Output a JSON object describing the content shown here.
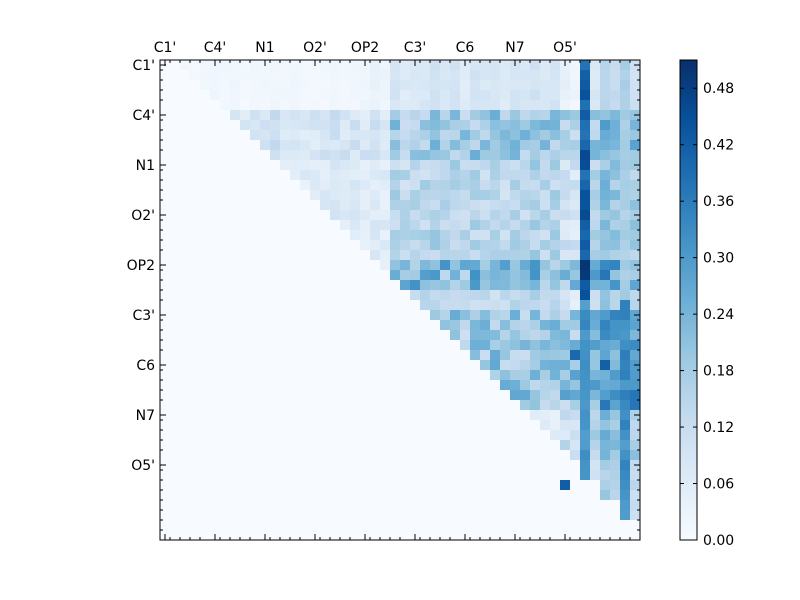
{
  "chart_data": {
    "type": "heatmap",
    "title": "",
    "xlabel": "",
    "ylabel": "",
    "n": 48,
    "major_tick_labels": [
      "C1'",
      "C4'",
      "N1",
      "O2'",
      "OP2",
      "C3'",
      "C6",
      "N7",
      "O5'"
    ],
    "major_tick_indices": [
      0,
      5,
      10,
      15,
      20,
      25,
      30,
      35,
      40
    ],
    "x_tick_position": "top",
    "colormap": "Blues",
    "colorbar": {
      "min": 0.0,
      "max": 0.51,
      "tick_values": [
        0.0,
        0.06,
        0.12,
        0.18,
        0.24,
        0.3,
        0.36,
        0.42,
        0.48
      ],
      "tick_labels": [
        "0.00",
        "0.06",
        "0.12",
        "0.18",
        "0.24",
        "0.30",
        "0.36",
        "0.42",
        "0.48"
      ]
    },
    "lower_triangle_value": 0.0,
    "row_block_strength": [
      0.03,
      0.15,
      0.1,
      0.1,
      0.08,
      0.2,
      0.22,
      0.12,
      0.05,
      0.06
    ],
    "special_columns": [
      {
        "col": 42,
        "value_rows_0_23": 0.44,
        "value_rows_24_47": 0.34
      },
      {
        "col": 46,
        "value_rows_0_23": 0.18,
        "value_rows_24_47": 0.34
      }
    ],
    "col_bias": [
      0.03,
      0.0,
      0.06,
      0.02,
      0.05,
      0.07,
      0.04,
      0.06,
      0.03,
      0.05,
      0.04,
      0.06,
      0.05,
      0.06,
      0.02,
      0.04,
      0.03,
      0.05,
      0.04,
      0.05,
      0.03,
      0.05,
      0.03,
      0.06,
      0.04,
      0.05,
      0.05,
      0.07,
      0.05,
      0.06,
      0.04,
      0.06,
      0.05,
      0.06,
      0.04,
      0.06,
      0.05,
      0.07,
      0.05,
      0.06,
      0.01,
      0.0,
      0.0,
      0.05,
      0.12,
      0.1,
      0.0,
      0.08
    ],
    "peak_cells": [
      {
        "row": 20,
        "col": 42,
        "value": 0.5
      },
      {
        "row": 21,
        "col": 42,
        "value": 0.49
      },
      {
        "row": 29,
        "col": 41,
        "value": 0.4
      },
      {
        "row": 42,
        "col": 40,
        "value": 0.42
      },
      {
        "row": 31,
        "col": 43,
        "value": 0.24
      },
      {
        "row": 30,
        "col": 43,
        "value": 0.2
      },
      {
        "row": 43,
        "col": 44,
        "value": 0.2
      }
    ]
  }
}
